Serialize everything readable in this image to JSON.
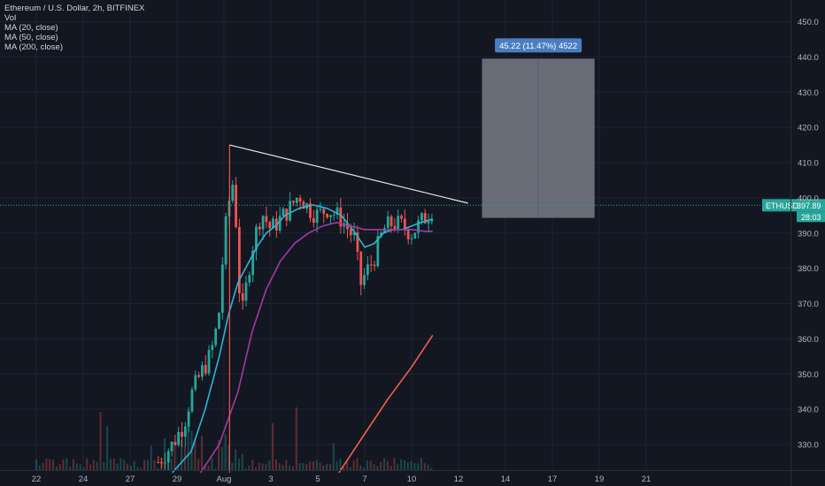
{
  "legend": {
    "symbol": "Ethereum / U.S. Dollar, 2h, BITFINEX",
    "vol": "Vol",
    "ma20": "MA (20, close)",
    "ma50": "MA (50, close)",
    "ma200": "MA (200, close)"
  },
  "colors": {
    "background": "#131722",
    "grid": "#1f2330",
    "axis_text": "#b2b5be",
    "candle_up": "#26a69a",
    "candle_down": "#ef5350",
    "ma20": "#29b6d6",
    "ma50": "#a03ba0",
    "ma200": "#f0604d",
    "trendline": "#e8e8e8",
    "projection_box": "#787b86",
    "projection_label": "#4a7ec2",
    "price_badge": "#26a69a"
  },
  "chart_data": {
    "type": "candlestick",
    "x_tick_labels": [
      "22",
      "24",
      "27",
      "29",
      "Aug",
      "3",
      "5",
      "7",
      "10",
      "12",
      "14",
      "17",
      "19",
      "21"
    ],
    "y_tick_labels": [
      330,
      340,
      350,
      360,
      370,
      380,
      390,
      400,
      410,
      420,
      430,
      440,
      450
    ],
    "y_range": [
      322,
      455
    ],
    "series": {
      "price": {
        "name": "ETHUSD",
        "anchors": [
          [
            2.6,
            325
          ],
          [
            2.9,
            330
          ],
          [
            3.15,
            336
          ],
          [
            3.3,
            344
          ],
          [
            3.5,
            350
          ],
          [
            3.7,
            355
          ],
          [
            3.8,
            360
          ],
          [
            3.9,
            368
          ],
          [
            4.0,
            388
          ],
          [
            4.12,
            400
          ],
          [
            4.2,
            405
          ],
          [
            4.25,
            395
          ],
          [
            4.32,
            375
          ],
          [
            4.4,
            368
          ],
          [
            4.6,
            386
          ],
          [
            4.8,
            396
          ],
          [
            5.0,
            391
          ],
          [
            5.2,
            394
          ],
          [
            5.4,
            397
          ],
          [
            5.6,
            401
          ],
          [
            5.8,
            397
          ],
          [
            6.0,
            395
          ],
          [
            6.2,
            397
          ],
          [
            6.5,
            394
          ],
          [
            6.8,
            388
          ],
          [
            6.9,
            375
          ],
          [
            7.0,
            378
          ],
          [
            7.2,
            383
          ],
          [
            7.4,
            391
          ],
          [
            7.6,
            393
          ],
          [
            7.8,
            392
          ],
          [
            8.0,
            390
          ],
          [
            8.2,
            393
          ],
          [
            8.45,
            397
          ]
        ]
      },
      "ma20": {
        "name": "MA (20, close)",
        "points": [
          [
            2.9,
            322
          ],
          [
            3.3,
            328
          ],
          [
            3.6,
            340
          ],
          [
            3.9,
            355
          ],
          [
            4.1,
            367
          ],
          [
            4.3,
            376
          ],
          [
            4.5,
            381
          ],
          [
            4.7,
            386
          ],
          [
            4.9,
            390
          ],
          [
            5.1,
            392
          ],
          [
            5.3,
            395
          ],
          [
            5.6,
            397
          ],
          [
            5.9,
            398
          ],
          [
            6.2,
            397
          ],
          [
            6.5,
            395
          ],
          [
            6.8,
            390
          ],
          [
            7.0,
            386
          ],
          [
            7.2,
            387
          ],
          [
            7.4,
            390
          ],
          [
            7.6,
            391
          ],
          [
            7.8,
            391
          ],
          [
            8.0,
            392
          ],
          [
            8.2,
            393
          ],
          [
            8.45,
            394
          ]
        ]
      },
      "ma50": {
        "name": "MA (50, close)",
        "points": [
          [
            3.5,
            322
          ],
          [
            3.9,
            330
          ],
          [
            4.3,
            345
          ],
          [
            4.6,
            362
          ],
          [
            4.9,
            374
          ],
          [
            5.2,
            382
          ],
          [
            5.5,
            387
          ],
          [
            5.8,
            390
          ],
          [
            6.1,
            392
          ],
          [
            6.4,
            393
          ],
          [
            6.7,
            392
          ],
          [
            7.0,
            391
          ],
          [
            7.3,
            391
          ],
          [
            7.7,
            391
          ],
          [
            8.0,
            391
          ],
          [
            8.3,
            390.5
          ],
          [
            8.45,
            390.5
          ]
        ]
      },
      "ma200": {
        "name": "MA (200, close)",
        "points": [
          [
            6.45,
            322
          ],
          [
            7.0,
            333
          ],
          [
            7.5,
            343
          ],
          [
            8.0,
            352
          ],
          [
            8.45,
            361
          ]
        ]
      }
    },
    "annotations": {
      "trendline": {
        "from": [
          4.12,
          415
        ],
        "to": [
          9.2,
          398.5
        ]
      },
      "vertical_marker": {
        "x": 4.12,
        "y_bottom": 322,
        "y_top": 415
      },
      "projection": {
        "x_from": 9.5,
        "x_to": 11.9,
        "y_from": 394.3,
        "y_to": 439.5,
        "label": "45.22 (11.47%) 4522"
      },
      "current_price": {
        "value": 397.89,
        "symbol_label": "ETHUSD",
        "price_label": "397.89",
        "timer_label": "28:03"
      }
    }
  }
}
